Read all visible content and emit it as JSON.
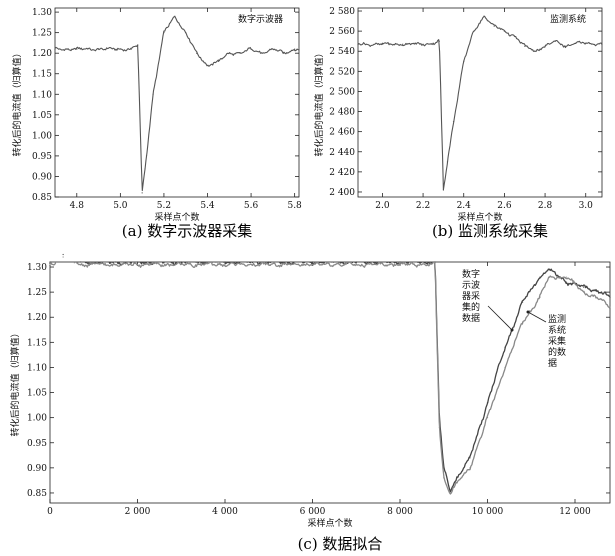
{
  "chart_data": [
    {
      "id": "a",
      "type": "line",
      "caption": "(a) 数字示波器采集",
      "legend_text": "数字示波器",
      "xlabel": "采样点个数",
      "ylabel": "转化后的电流值（归算值）",
      "xlim": [
        4.7,
        5.82
      ],
      "ylim": [
        0.85,
        1.31
      ],
      "xticks": [
        4.8,
        5.0,
        5.2,
        5.4,
        5.6,
        5.8
      ],
      "xtick_labels": [
        "4.8",
        "5.0",
        "5.2",
        "5.4",
        "5.6",
        "5.8"
      ],
      "yticks": [
        0.85,
        0.9,
        0.95,
        1.0,
        1.05,
        1.1,
        1.15,
        1.2,
        1.25,
        1.3
      ],
      "ytick_labels": [
        "0.85",
        "0.90",
        "0.95",
        "1.00",
        "1.05",
        "1.10",
        "1.15",
        "1.20",
        "1.25",
        "1.30"
      ],
      "series": [
        {
          "color": "#555555",
          "x": [
            4.7,
            4.8,
            4.9,
            5.0,
            5.05,
            5.08,
            5.1,
            5.12,
            5.15,
            5.2,
            5.25,
            5.3,
            5.35,
            5.4,
            5.45,
            5.5,
            5.55,
            5.6,
            5.65,
            5.7,
            5.75,
            5.8,
            5.82
          ],
          "y": [
            1.21,
            1.21,
            1.21,
            1.21,
            1.21,
            1.22,
            0.86,
            0.95,
            1.1,
            1.25,
            1.29,
            1.25,
            1.2,
            1.17,
            1.18,
            1.2,
            1.2,
            1.21,
            1.2,
            1.21,
            1.2,
            1.21,
            1.21
          ]
        }
      ]
    },
    {
      "id": "b",
      "type": "line",
      "caption": "(b) 监测系统采集",
      "legend_text": "监测系统",
      "xlabel": "采样点个数",
      "ylabel": "转化后的电流值（归算值）",
      "xlim": [
        1.88,
        3.08
      ],
      "ylim": [
        2.395,
        2.583
      ],
      "xticks": [
        2.0,
        2.2,
        2.4,
        2.6,
        2.8,
        3.0
      ],
      "xtick_labels": [
        "2.0",
        "2.2",
        "2.4",
        "2.6",
        "2.8",
        "3.0"
      ],
      "yticks": [
        2.4,
        2.42,
        2.44,
        2.46,
        2.48,
        2.5,
        2.52,
        2.54,
        2.56,
        2.58
      ],
      "ytick_labels": [
        "2 400",
        "2 420",
        "2 440",
        "2 460",
        "2 480",
        "2 500",
        "2 520",
        "2 540",
        "2 560",
        "2 580"
      ],
      "series": [
        {
          "color": "#555555",
          "x": [
            1.88,
            2.0,
            2.1,
            2.2,
            2.25,
            2.28,
            2.3,
            2.32,
            2.35,
            2.4,
            2.45,
            2.5,
            2.55,
            2.6,
            2.65,
            2.7,
            2.75,
            2.8,
            2.85,
            2.9,
            2.95,
            3.0,
            3.08
          ],
          "y": [
            2.547,
            2.547,
            2.547,
            2.547,
            2.548,
            2.55,
            2.402,
            2.43,
            2.47,
            2.53,
            2.56,
            2.575,
            2.565,
            2.56,
            2.555,
            2.545,
            2.54,
            2.545,
            2.55,
            2.545,
            2.548,
            2.548,
            2.547
          ]
        }
      ]
    },
    {
      "id": "c",
      "type": "line",
      "caption": "(c) 数据拟合",
      "xlabel": "采样点个数",
      "ylabel": "转化后的电流值（归算值）",
      "xlim": [
        0,
        12800
      ],
      "ylim": [
        0.83,
        1.31
      ],
      "xticks": [
        0,
        2000,
        4000,
        6000,
        8000,
        10000,
        12000
      ],
      "xtick_labels": [
        "0",
        "2 000",
        "4 000",
        "6 000",
        "8 000",
        "10 000",
        "12 000"
      ],
      "yticks": [
        0.85,
        0.9,
        0.95,
        1.0,
        1.05,
        1.1,
        1.15,
        1.2,
        1.25,
        1.3
      ],
      "ytick_labels": [
        "0.85",
        "0.90",
        "0.95",
        "1.00",
        "1.05",
        "1.10",
        "1.15",
        "1.20",
        "1.25",
        "1.30"
      ],
      "annotations": [
        {
          "text": [
            "数字",
            "示波",
            "器采",
            "集的",
            "数据"
          ],
          "series": 0
        },
        {
          "text": [
            "监测",
            "系统",
            "采集",
            "的数",
            "据"
          ],
          "series": 1
        }
      ],
      "series": [
        {
          "color": "#444444",
          "x": [
            0,
            300,
            700,
            1500,
            2000,
            3000,
            4000,
            5000,
            6000,
            7000,
            8000,
            8800,
            8900,
            9000,
            9150,
            9300,
            9600,
            10000,
            10400,
            10800,
            11200,
            11400,
            11800,
            12200,
            12600,
            12800
          ],
          "y": [
            1.31,
            1.325,
            1.31,
            1.31,
            1.31,
            1.31,
            1.31,
            1.31,
            1.31,
            1.31,
            1.31,
            1.31,
            1.0,
            0.9,
            0.855,
            0.88,
            0.92,
            1.03,
            1.14,
            1.23,
            1.28,
            1.295,
            1.27,
            1.26,
            1.25,
            1.24
          ]
        },
        {
          "color": "#888888",
          "x": [
            0,
            300,
            700,
            1500,
            2000,
            3000,
            4000,
            5000,
            6000,
            7000,
            8000,
            8800,
            8900,
            9000,
            9150,
            9300,
            9600,
            10000,
            10400,
            10800,
            11200,
            11400,
            11800,
            12200,
            12600,
            12800
          ],
          "y": [
            1.305,
            1.32,
            1.305,
            1.305,
            1.305,
            1.305,
            1.305,
            1.305,
            1.305,
            1.305,
            1.305,
            1.305,
            0.98,
            0.88,
            0.85,
            0.87,
            0.9,
            1.0,
            1.1,
            1.19,
            1.24,
            1.28,
            1.28,
            1.25,
            1.235,
            1.22
          ]
        }
      ]
    }
  ]
}
